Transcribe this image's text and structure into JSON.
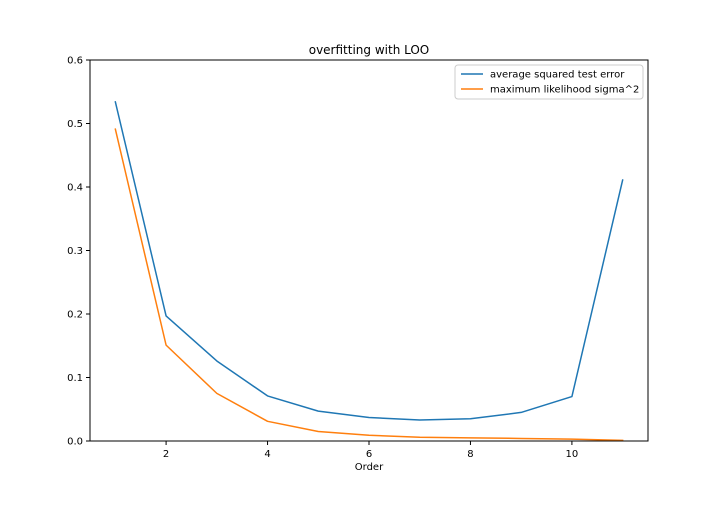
{
  "chart_data": {
    "type": "line",
    "title": "overfitting with LOO",
    "xlabel": "Order",
    "ylabel": "",
    "x": [
      1,
      2,
      3,
      4,
      5,
      6,
      7,
      8,
      9,
      10,
      11
    ],
    "series": [
      {
        "name": "average squared test error",
        "color": "#1f77b4",
        "values": [
          0.534,
          0.197,
          0.126,
          0.071,
          0.047,
          0.037,
          0.033,
          0.035,
          0.045,
          0.07,
          0.411
        ]
      },
      {
        "name": "maximum likelihood sigma^2",
        "color": "#ff7f0e",
        "values": [
          0.491,
          0.151,
          0.075,
          0.031,
          0.015,
          0.009,
          0.006,
          0.005,
          0.004,
          0.003,
          0.001
        ]
      }
    ],
    "xlim": [
      0.5,
      11.5
    ],
    "ylim": [
      0,
      0.6
    ],
    "xticks": [
      2,
      4,
      6,
      8,
      10
    ],
    "xtick_labels": [
      "2",
      "4",
      "6",
      "8",
      "10"
    ],
    "yticks": [
      0.0,
      0.1,
      0.2,
      0.3,
      0.4,
      0.5,
      0.6
    ],
    "ytick_labels": [
      "0.0",
      "0.1",
      "0.2",
      "0.3",
      "0.4",
      "0.5",
      "0.6"
    ],
    "grid": false,
    "legend_position": "top-right"
  }
}
